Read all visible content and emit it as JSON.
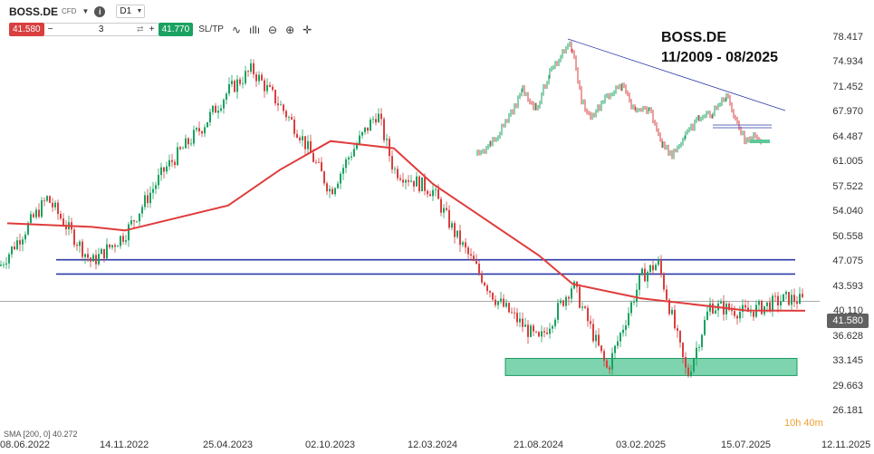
{
  "toolbar": {
    "symbol": "BOSS.DE",
    "instrument_type": "CFD",
    "timeframe": "D1",
    "sell_price": "41.580",
    "quantity": "3",
    "buy_price": "41.770",
    "sltp_label": "SL/TP"
  },
  "price_axis": [
    "78.417",
    "74.934",
    "71.452",
    "67.970",
    "64.487",
    "61.005",
    "57.522",
    "54.040",
    "50.558",
    "47.075",
    "43.593",
    "40.110",
    "36.628",
    "33.145",
    "29.663",
    "26.181"
  ],
  "current_price": "41.580",
  "date_axis": [
    "08.06.2022",
    "14.11.2022",
    "25.04.2023",
    "02.10.2023",
    "12.03.2024",
    "21.08.2024",
    "03.02.2025",
    "15.07.2025",
    "12.11.2025"
  ],
  "timer": "10h 40m",
  "sma_label": "SMA [200, 0]  40.272",
  "inset": {
    "title": "BOSS.DE",
    "subtitle": "11/2009 - 08/2025"
  },
  "colors": {
    "sell": "#d93f3f",
    "buy": "#1aa260",
    "sma": "#e03c3c",
    "support_zone": "#5cc99a",
    "resistance_lines": "#2b3aa8",
    "candle_up": "#1aa260",
    "candle_down": "#d93f3f"
  },
  "chart_data": {
    "type": "candlestick",
    "ylim": [
      26.181,
      78.417
    ],
    "x_range": [
      "08.06.2022",
      "12.11.2025"
    ],
    "close_path": [
      [
        "08.06.2022",
        48
      ],
      [
        "01.08.2022",
        56
      ],
      [
        "30.09.2022",
        47
      ],
      [
        "14.11.2022",
        51
      ],
      [
        "15.01.2023",
        60
      ],
      [
        "15.03.2023",
        66
      ],
      [
        "25.04.2023",
        71
      ],
      [
        "01.06.2023",
        74
      ],
      [
        "15.07.2023",
        69
      ],
      [
        "15.08.2023",
        65
      ],
      [
        "02.10.2023",
        57
      ],
      [
        "01.11.2023",
        62
      ],
      [
        "15.12.2023",
        68
      ],
      [
        "10.01.2024",
        60
      ],
      [
        "12.03.2024",
        57
      ],
      [
        "15.04.2024",
        51
      ],
      [
        "15.06.2024",
        42
      ],
      [
        "21.08.2024",
        36
      ],
      [
        "15.10.2024",
        44
      ],
      [
        "10.12.2024",
        32
      ],
      [
        "03.02.2025",
        45
      ],
      [
        "01.03.2025",
        47
      ],
      [
        "15.04.2025",
        31
      ],
      [
        "20.05.2025",
        41
      ],
      [
        "15.07.2025",
        40
      ],
      [
        "01.09.2025",
        42
      ],
      [
        "22.09.2025",
        41.58
      ]
    ],
    "sma_200": [
      [
        "08.06.2022",
        52.5
      ],
      [
        "30.09.2022",
        52
      ],
      [
        "14.11.2022",
        51.5
      ],
      [
        "25.04.2023",
        55
      ],
      [
        "15.07.2023",
        60
      ],
      [
        "02.10.2023",
        64
      ],
      [
        "10.01.2024",
        63
      ],
      [
        "12.03.2024",
        58
      ],
      [
        "21.08.2024",
        48
      ],
      [
        "15.10.2024",
        44
      ],
      [
        "03.02.2025",
        42
      ],
      [
        "15.07.2025",
        40.3
      ],
      [
        "22.09.2025",
        40.272
      ]
    ],
    "resistance_lines": [
      47.4,
      45.4
    ],
    "support_zone": [
      31.2,
      33.6
    ]
  }
}
